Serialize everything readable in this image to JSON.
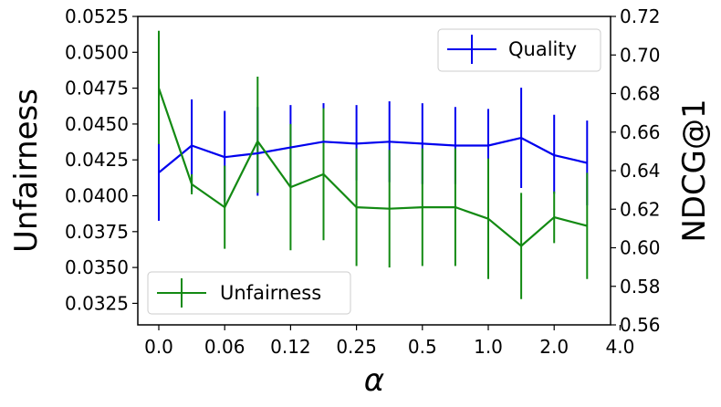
{
  "chart_data": {
    "type": "line",
    "xlabel": "α",
    "x_tick_labels": [
      "0.0",
      "0.06",
      "0.12",
      "0.25",
      "0.5",
      "1.0",
      "2.0",
      "4.0"
    ],
    "grid": false,
    "left_axis": {
      "label": "Unfairness",
      "ylim": [
        0.031,
        0.0525
      ],
      "ticks": [
        "0.0325",
        "0.0350",
        "0.0375",
        "0.0400",
        "0.0425",
        "0.0450",
        "0.0475",
        "0.0500",
        "0.0525"
      ]
    },
    "right_axis": {
      "label": "NDCG@1",
      "ylim": [
        0.56,
        0.72
      ],
      "ticks": [
        "0.56",
        "0.58",
        "0.60",
        "0.62",
        "0.64",
        "0.66",
        "0.68",
        "0.70",
        "0.72"
      ]
    },
    "series": [
      {
        "name": "Quality",
        "axis": "right",
        "color": "#0000ee",
        "legend_position": "top-right",
        "x_index": [
          0,
          1,
          2,
          3,
          4,
          5,
          6,
          7,
          8,
          9,
          10,
          11,
          12,
          13
        ],
        "values": [
          0.639,
          0.653,
          0.647,
          0.649,
          0.652,
          0.655,
          0.654,
          0.655,
          0.654,
          0.653,
          0.653,
          0.657,
          0.648,
          0.644
        ],
        "err_low": [
          0.614,
          0.629,
          0.624,
          0.627,
          0.631,
          0.636,
          0.635,
          0.634,
          0.633,
          0.633,
          0.633,
          0.631,
          0.628,
          0.622
        ],
        "err_high": [
          0.664,
          0.677,
          0.671,
          0.673,
          0.674,
          0.675,
          0.674,
          0.676,
          0.675,
          0.673,
          0.672,
          0.683,
          0.669,
          0.666
        ]
      },
      {
        "name": "Unfairness",
        "axis": "left",
        "color": "#138a13",
        "legend_position": "bottom-left",
        "x_index": [
          0,
          1,
          2,
          3,
          4,
          5,
          6,
          7,
          8,
          9,
          10,
          11,
          12,
          13
        ],
        "values": [
          0.0475,
          0.0408,
          0.0392,
          0.0438,
          0.0406,
          0.0415,
          0.0392,
          0.0391,
          0.0392,
          0.0392,
          0.0384,
          0.0365,
          0.0385,
          0.0379
        ],
        "err_low": [
          0.0436,
          0.0401,
          0.0363,
          0.0402,
          0.0362,
          0.0369,
          0.0351,
          0.035,
          0.0351,
          0.0351,
          0.0342,
          0.0328,
          0.0367,
          0.0342
        ],
        "err_high": [
          0.0515,
          0.0415,
          0.0421,
          0.0483,
          0.045,
          0.0461,
          0.0433,
          0.0432,
          0.0433,
          0.0433,
          0.0426,
          0.0402,
          0.0403,
          0.0416
        ]
      }
    ]
  }
}
